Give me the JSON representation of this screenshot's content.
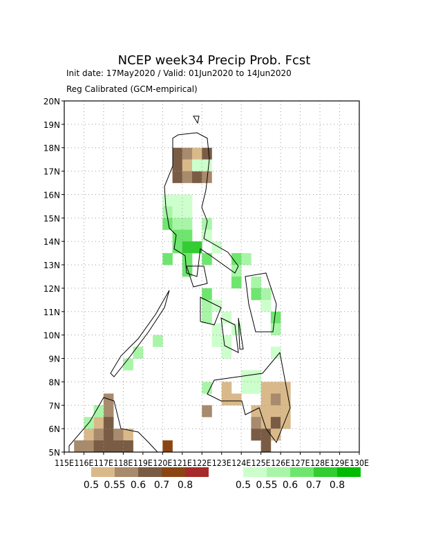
{
  "map": {
    "title": "NCEP week34 Precip Prob. Fcst",
    "subtitle1": "Init date: 17May2020 / Valid: 01Jun2020 to 14Jun2020",
    "subtitle2": "Reg Calibrated (GCM-empirical)",
    "xlim": [
      115,
      130
    ],
    "ylim": [
      5,
      20
    ],
    "cell_size": 0.5,
    "xticks": [
      {
        "value": 115,
        "label": "115E"
      },
      {
        "value": 116,
        "label": "116E"
      },
      {
        "value": 117,
        "label": "117E"
      },
      {
        "value": 118,
        "label": "118E"
      },
      {
        "value": 119,
        "label": "119E"
      },
      {
        "value": 120,
        "label": "120E"
      },
      {
        "value": 121,
        "label": "121E"
      },
      {
        "value": 122,
        "label": "122E"
      },
      {
        "value": 123,
        "label": "123E"
      },
      {
        "value": 124,
        "label": "124E"
      },
      {
        "value": 125,
        "label": "125E"
      },
      {
        "value": 126,
        "label": "126E"
      },
      {
        "value": 127,
        "label": "127E"
      },
      {
        "value": 128,
        "label": "128E"
      },
      {
        "value": 129,
        "label": "129E"
      },
      {
        "value": 130,
        "label": "130E"
      }
    ],
    "yticks": [
      {
        "value": 5,
        "label": "5N"
      },
      {
        "value": 6,
        "label": "6N"
      },
      {
        "value": 7,
        "label": "7N"
      },
      {
        "value": 8,
        "label": "8N"
      },
      {
        "value": 9,
        "label": "9N"
      },
      {
        "value": 10,
        "label": "10N"
      },
      {
        "value": 11,
        "label": "11N"
      },
      {
        "value": 12,
        "label": "12N"
      },
      {
        "value": 13,
        "label": "13N"
      },
      {
        "value": 14,
        "label": "14N"
      },
      {
        "value": 15,
        "label": "15N"
      },
      {
        "value": 16,
        "label": "16N"
      },
      {
        "value": 17,
        "label": "17N"
      },
      {
        "value": 18,
        "label": "18N"
      },
      {
        "value": 19,
        "label": "19N"
      },
      {
        "value": 20,
        "label": "20N"
      }
    ],
    "grid": true,
    "colorbars": [
      {
        "name": "below",
        "levels": [
          0.5,
          0.55,
          0.6,
          0.7,
          0.8
        ],
        "colors": [
          "#d9b98a",
          "#a88a6c",
          "#7a5c44",
          "#8b4513",
          "#a52a2a"
        ]
      },
      {
        "name": "above",
        "levels": [
          0.5,
          0.55,
          0.6,
          0.7,
          0.8
        ],
        "colors": [
          "#ccffcc",
          "#a8f5a8",
          "#6ee66e",
          "#33cc33",
          "#00bb00"
        ]
      }
    ],
    "cells": {
      "below": [
        [
          120.5,
          17.5,
          0.6
        ],
        [
          121,
          17.5,
          0.55
        ],
        [
          121.5,
          17.5,
          0.5
        ],
        [
          122,
          17.5,
          0.6
        ],
        [
          120.5,
          17,
          0.6
        ],
        [
          121,
          17,
          0.5
        ],
        [
          120.5,
          16.5,
          0.6
        ],
        [
          121,
          16.5,
          0.55
        ],
        [
          121.5,
          16.5,
          0.6
        ],
        [
          122,
          16.5,
          0.55
        ],
        [
          123,
          7.5,
          0.5
        ],
        [
          125,
          7.5,
          0.5
        ],
        [
          125.5,
          7.5,
          0.5
        ],
        [
          126,
          7.5,
          0.5
        ],
        [
          123,
          7,
          0.5
        ],
        [
          123.5,
          7,
          0.5
        ],
        [
          125,
          7,
          0.5
        ],
        [
          125.5,
          7,
          0.55
        ],
        [
          126,
          7,
          0.5
        ],
        [
          122,
          6.5,
          0.55
        ],
        [
          124.5,
          6.5,
          0.5
        ],
        [
          125,
          6.5,
          0.5
        ],
        [
          125.5,
          6.5,
          0.5
        ],
        [
          126,
          6.5,
          0.5
        ],
        [
          124.5,
          6,
          0.55
        ],
        [
          125,
          6,
          0.5
        ],
        [
          125.5,
          6,
          0.6
        ],
        [
          126,
          6,
          0.5
        ],
        [
          124.5,
          5.5,
          0.6
        ],
        [
          125,
          5.5,
          0.6
        ],
        [
          125.5,
          5.5,
          0.5
        ],
        [
          125,
          5,
          0.6
        ],
        [
          117,
          7,
          0.55
        ],
        [
          116.5,
          6.5,
          0.5
        ],
        [
          117,
          6.5,
          0.55
        ],
        [
          116.5,
          6,
          0.5
        ],
        [
          117,
          6,
          0.6
        ],
        [
          116,
          5.5,
          0.5
        ],
        [
          116.5,
          5.5,
          0.55
        ],
        [
          117,
          5.5,
          0.6
        ],
        [
          117.5,
          5.5,
          0.55
        ],
        [
          118,
          5.5,
          0.5
        ],
        [
          115.5,
          5,
          0.55
        ],
        [
          116,
          5,
          0.55
        ],
        [
          116.5,
          5,
          0.6
        ],
        [
          117,
          5,
          0.6
        ],
        [
          117.5,
          5,
          0.6
        ],
        [
          118,
          5,
          0.6
        ],
        [
          120,
          5,
          0.7
        ]
      ],
      "above": [
        [
          121.5,
          17,
          0.5
        ],
        [
          122,
          17,
          0.5
        ],
        [
          120,
          15.5,
          0.5
        ],
        [
          120.5,
          15.5,
          0.5
        ],
        [
          121,
          15.5,
          0.5
        ],
        [
          120,
          15,
          0.55
        ],
        [
          120.5,
          15,
          0.5
        ],
        [
          121,
          15,
          0.5
        ],
        [
          120,
          14.5,
          0.6
        ],
        [
          120.5,
          14.5,
          0.55
        ],
        [
          121,
          14.5,
          0.55
        ],
        [
          122,
          14.5,
          0.55
        ],
        [
          120.5,
          14,
          0.6
        ],
        [
          121,
          14,
          0.6
        ],
        [
          122,
          14,
          0.5
        ],
        [
          120.5,
          13.5,
          0.6
        ],
        [
          121,
          13.5,
          0.7
        ],
        [
          121.5,
          13.5,
          0.7
        ],
        [
          122.5,
          13.5,
          0.5
        ],
        [
          120,
          13,
          0.6
        ],
        [
          121,
          13,
          0.6
        ],
        [
          122,
          13,
          0.6
        ],
        [
          123.5,
          13,
          0.6
        ],
        [
          124,
          13,
          0.55
        ],
        [
          121,
          12.5,
          0.6
        ],
        [
          123.5,
          12.5,
          0.55
        ],
        [
          123.5,
          12,
          0.6
        ],
        [
          124.5,
          12,
          0.55
        ],
        [
          122,
          11.5,
          0.6
        ],
        [
          124.5,
          11.5,
          0.6
        ],
        [
          125,
          11.5,
          0.55
        ],
        [
          122,
          11,
          0.55
        ],
        [
          122.5,
          11,
          0.5
        ],
        [
          125,
          11,
          0.5
        ],
        [
          122,
          10.5,
          0.55
        ],
        [
          123,
          10.5,
          0.5
        ],
        [
          125.5,
          10.5,
          0.6
        ],
        [
          122.5,
          10,
          0.5
        ],
        [
          123.5,
          10,
          0.5
        ],
        [
          125.5,
          10,
          0.55
        ],
        [
          119.5,
          9.5,
          0.55
        ],
        [
          122.5,
          9.5,
          0.5
        ],
        [
          123,
          9.5,
          0.5
        ],
        [
          118.5,
          9,
          0.55
        ],
        [
          123,
          9,
          0.5
        ],
        [
          125.5,
          9,
          0.5
        ],
        [
          118,
          8.5,
          0.55
        ],
        [
          124,
          8,
          0.5
        ],
        [
          124.5,
          8,
          0.5
        ],
        [
          122,
          7.5,
          0.55
        ],
        [
          124,
          7.5,
          0.5
        ],
        [
          124.5,
          7.5,
          0.5
        ],
        [
          116.5,
          6.5,
          0.55
        ],
        [
          116,
          6,
          0.55
        ]
      ]
    }
  }
}
